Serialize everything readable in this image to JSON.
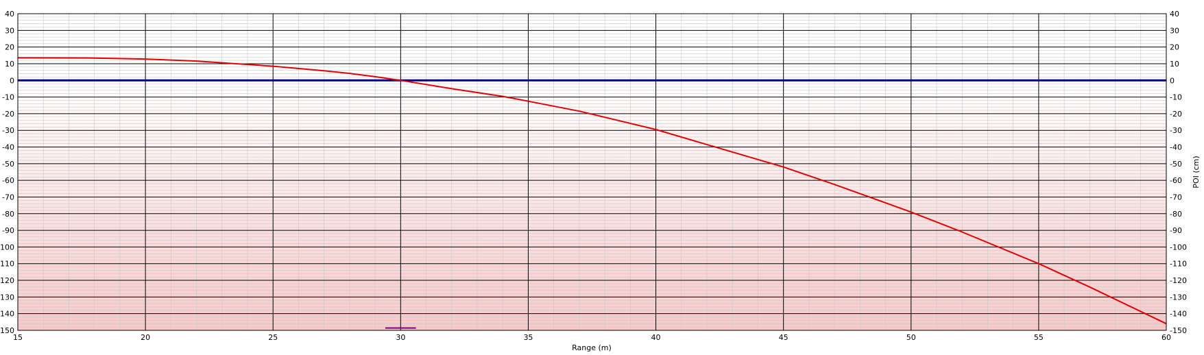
{
  "chart_data": {
    "type": "line",
    "title": "",
    "xlabel": "Range (m)",
    "ylabel": "POI (cm)",
    "xlim": [
      15,
      60
    ],
    "ylim": [
      -150,
      40
    ],
    "x_major_step": 5,
    "x_minor_step": 1,
    "y_major_step": 10,
    "y_minor_step": 2,
    "x_ticks": [
      "15",
      "20",
      "25",
      "30",
      "35",
      "40",
      "45",
      "50",
      "55",
      "60"
    ],
    "y_ticks": [
      "40",
      "30",
      "20",
      "10",
      "0",
      "-10",
      "-20",
      "-30",
      "-40",
      "-50",
      "-60",
      "-70",
      "-80",
      "-90",
      "-100",
      "-110",
      "-120",
      "-130",
      "-140",
      "-150"
    ],
    "grid": true,
    "zero_line": 0,
    "zero_line_color": "#000080",
    "background_below_zero": "#f9d0d0",
    "series": [
      {
        "color": "#e60000",
        "x": [
          15,
          18,
          20,
          22,
          25,
          27,
          28,
          29,
          30,
          31,
          32,
          34,
          35,
          37,
          40,
          42,
          45,
          47,
          50,
          52,
          55,
          57,
          60
        ],
        "y": [
          13.5,
          13.4,
          12.8,
          11.6,
          8.5,
          5.8,
          4.2,
          2.2,
          0,
          -2.5,
          -5,
          -9.6,
          -12.5,
          -18.5,
          -29.5,
          -38.5,
          -52,
          -62.5,
          -79,
          -91,
          -110,
          -124,
          -146
        ]
      }
    ],
    "marker": {
      "x": [
        29.4,
        30.6
      ],
      "y": -148.6,
      "color": "#800080"
    }
  }
}
